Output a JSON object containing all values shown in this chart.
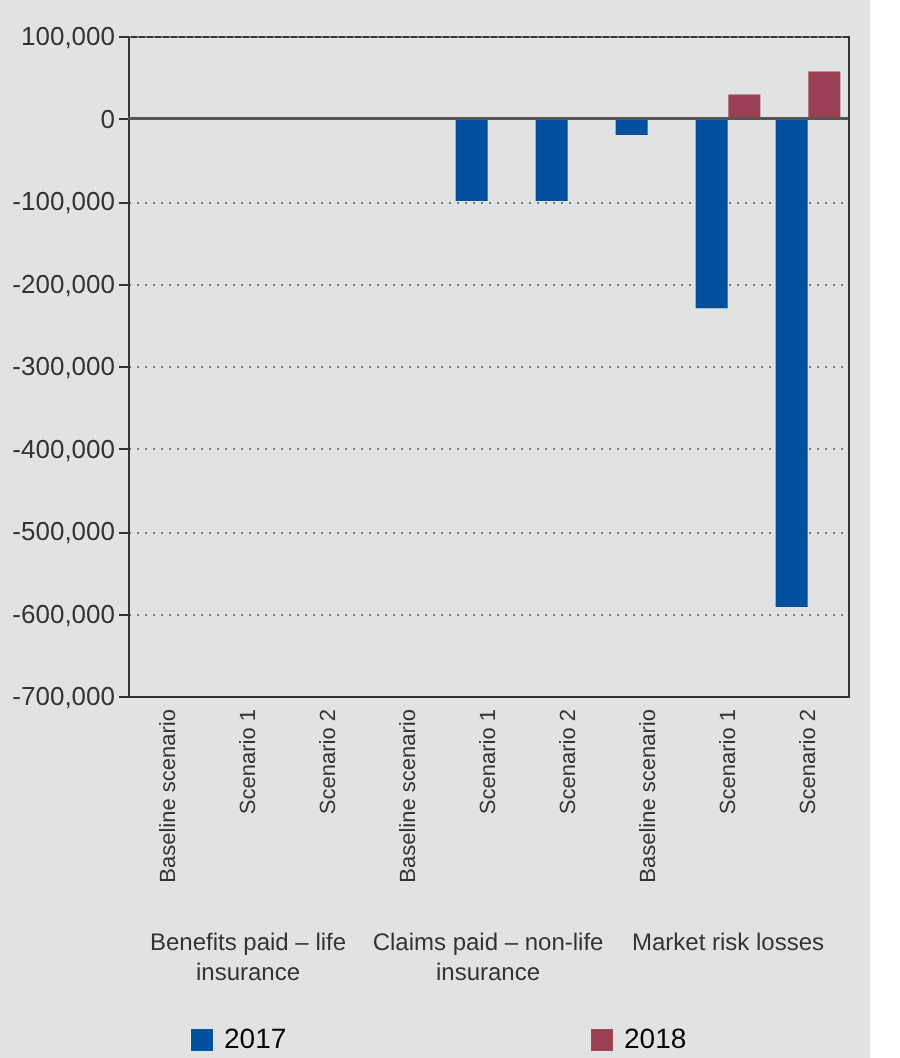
{
  "chart_data": {
    "type": "bar",
    "categories": [
      "Baseline scenario",
      "Scenario 1",
      "Scenario 2",
      "Baseline scenario",
      "Scenario 1",
      "Scenario 2",
      "Baseline scenario",
      "Scenario 1",
      "Scenario 2"
    ],
    "series": [
      {
        "name": "2017",
        "color": "#00509b",
        "values": [
          0,
          0,
          0,
          0,
          -100000,
          -100000,
          -20000,
          -230000,
          -592000
        ]
      },
      {
        "name": "2018",
        "color": "#9b3f55",
        "values": [
          0,
          0,
          0,
          0,
          0,
          0,
          0,
          29000,
          57000
        ]
      }
    ],
    "annotations": [
      "Benefits paid – life insurance",
      "Claims paid – non-life insurance",
      "Market risk losses"
    ],
    "ylim": [
      -700000,
      100000
    ],
    "yticks": [
      {
        "value": -700000,
        "label": "-700,000"
      },
      {
        "value": -600000,
        "label": "-600,000"
      },
      {
        "value": -500000,
        "label": "-500,000"
      },
      {
        "value": -400000,
        "label": "-400,000"
      },
      {
        "value": -300000,
        "label": "-300,000"
      },
      {
        "value": -200000,
        "label": "-200,000"
      },
      {
        "value": -100000,
        "label": "-100,000"
      },
      0,
      {
        "value": 100000,
        "label": "100,000"
      }
    ],
    "ref_lines": [
      {
        "axis": "y",
        "value": 0,
        "label": null
      }
    ],
    "grid": "y",
    "legend": "bottom"
  }
}
